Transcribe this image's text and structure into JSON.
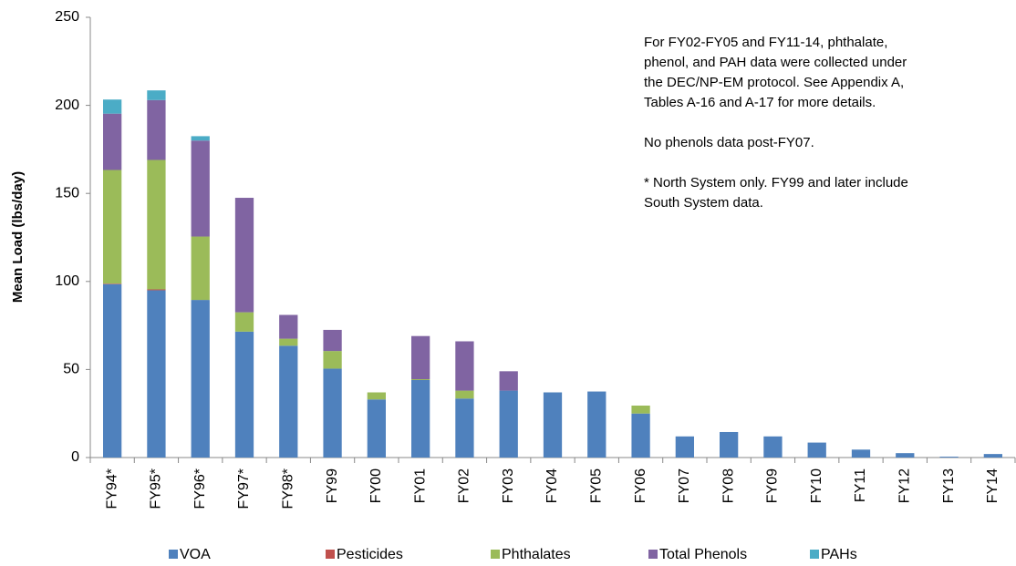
{
  "chart_data": {
    "type": "bar",
    "stacked": true,
    "y_label": "Mean Load (lbs/day)",
    "categories": [
      "FY94*",
      "FY95*",
      "FY96*",
      "FY97*",
      "FY98*",
      "FY99",
      "FY00",
      "FY01",
      "FY02",
      "FY03",
      "FY04",
      "FY05",
      "FY06",
      "FY07",
      "FY08",
      "FY09",
      "FY10",
      "FY11",
      "FY12",
      "FY13",
      "FY14"
    ],
    "series": [
      {
        "name": "VOA",
        "color": "#4f81bd",
        "values": [
          98.5,
          95,
          89.5,
          71.5,
          63.5,
          50.5,
          33,
          44,
          33.5,
          38,
          37,
          37.5,
          25,
          12,
          14.5,
          12,
          8.5,
          4.5,
          2.5,
          0.5,
          2
        ]
      },
      {
        "name": "Pesticides",
        "color": "#c0504d",
        "values": [
          0.3,
          0.5,
          0,
          0,
          0,
          0,
          0,
          0,
          0,
          0,
          0,
          0,
          0,
          0,
          0,
          0,
          0,
          0,
          0,
          0,
          0
        ]
      },
      {
        "name": "Phthalates",
        "color": "#9bbb59",
        "values": [
          64.5,
          73.5,
          36,
          11,
          4,
          10,
          4,
          0.5,
          4.5,
          0,
          0,
          0,
          4.5,
          0,
          0,
          0,
          0,
          0,
          0,
          0,
          0
        ]
      },
      {
        "name": "Total Phenols",
        "color": "#8064a2",
        "values": [
          32,
          34,
          54.5,
          65,
          13.5,
          12,
          0,
          24.5,
          28,
          11,
          0,
          0,
          0,
          0,
          0,
          0,
          0,
          0,
          0,
          0,
          0
        ]
      },
      {
        "name": "PAHs",
        "color": "#4bacc6",
        "values": [
          8,
          5.5,
          2.5,
          0,
          0,
          0,
          0,
          0,
          0,
          0,
          0,
          0,
          0,
          0,
          0,
          0,
          0,
          0,
          0,
          0,
          0
        ]
      }
    ],
    "ylim": [
      0,
      250
    ],
    "yticks": [
      0,
      50,
      100,
      150,
      200,
      250
    ],
    "annotations": [
      [
        "For FY02-FY05 and FY11-14, phthalate,",
        "phenol, and PAH data were collected under",
        "the DEC/NP-EM protocol.  See Appendix A,",
        "Tables A-16 and A-17 for more details."
      ],
      [
        "No phenols data post-FY07."
      ],
      [
        " *  North System only.  FY99 and later include",
        "South System data."
      ]
    ],
    "legend": "bottom"
  }
}
